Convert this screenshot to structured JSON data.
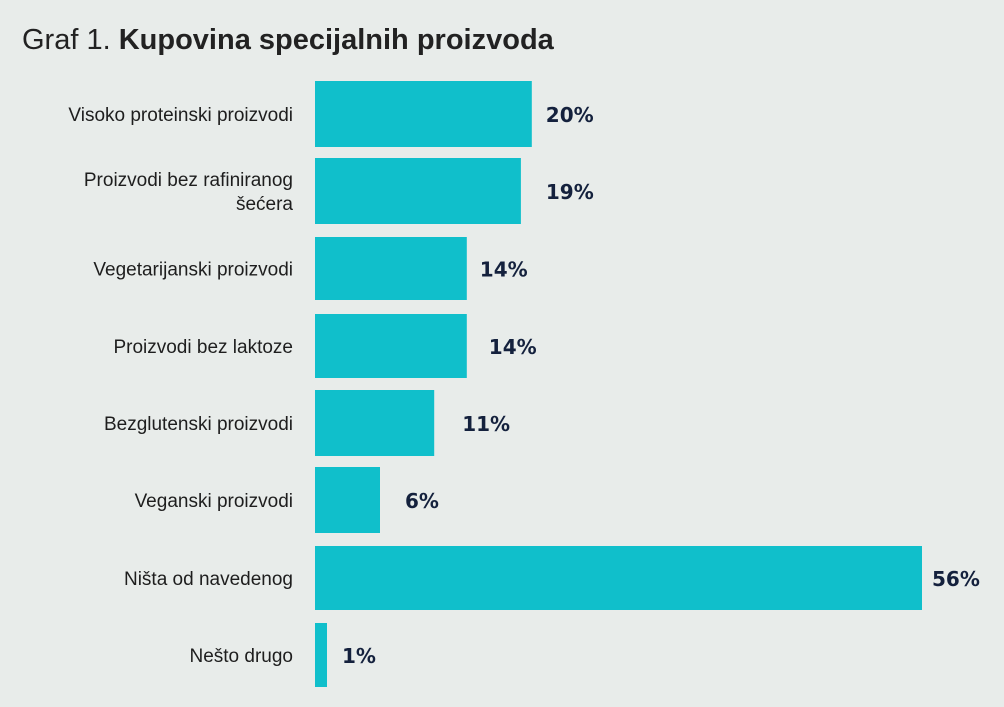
{
  "title": {
    "prefix": "Graf 1.",
    "main": "Kupovina specijalnih proizvoda"
  },
  "colors": {
    "bar": "#10bfcb",
    "background": "#e8ecea",
    "value_text": "#14213d",
    "label_text": "#1e1e1e"
  },
  "chart_data": {
    "type": "bar",
    "orientation": "horizontal",
    "title": "Graf 1. Kupovina specijalnih proizvoda",
    "categories": [
      [
        "Visoko proteinski proizvodi"
      ],
      [
        "Proizvodi bez rafiniranog",
        "šećera"
      ],
      [
        "Vegetarijanski proizvodi"
      ],
      [
        "Proizvodi bez laktoze"
      ],
      [
        "Bezglutenski proizvodi"
      ],
      [
        "Veganski proizvodi"
      ],
      [
        "Ništa od navedenog"
      ],
      [
        "Nešto drugo"
      ]
    ],
    "values": [
      20,
      19,
      14,
      14,
      11,
      6,
      56,
      1
    ],
    "value_labels": [
      "20%",
      "19%",
      "14%",
      "14%",
      "11%",
      "6%",
      "56%",
      "1%"
    ],
    "unit": "%",
    "xlim": [
      0,
      56
    ],
    "grid": false,
    "legend": "none"
  }
}
